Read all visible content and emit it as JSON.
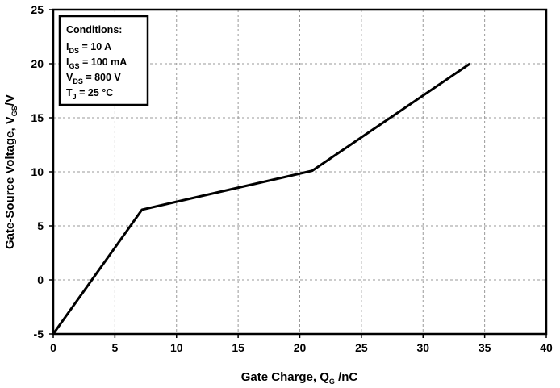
{
  "chart_data": {
    "type": "line",
    "xlabel": {
      "main": "Gate Charge, Q",
      "sub": "G",
      "suffix": " /nC"
    },
    "ylabel": {
      "main": "Gate-Source Voltage, V",
      "sub": "GS",
      "suffix": "/V"
    },
    "xlim": [
      0,
      40
    ],
    "ylim": [
      -5,
      25
    ],
    "x_ticks": [
      "0",
      "5",
      "10",
      "15",
      "20",
      "25",
      "30",
      "35",
      "40"
    ],
    "y_ticks": [
      "-5",
      "0",
      "5",
      "10",
      "15",
      "20",
      "25"
    ],
    "grid": true,
    "series": [
      {
        "color": "#000000",
        "points": [
          [
            0,
            -5
          ],
          [
            7.2,
            6.5
          ],
          [
            21,
            10.1
          ],
          [
            33.8,
            20
          ]
        ]
      }
    ],
    "conditions": {
      "title": "Conditions:",
      "lines": [
        {
          "main": "I",
          "sub": "DS",
          "rest": " = 10 A"
        },
        {
          "main": "I",
          "sub": "GS",
          "rest": " = 100 mA"
        },
        {
          "main": "V",
          "sub": "DS",
          "rest": " = 800 V"
        },
        {
          "main": "T",
          "sub": "J",
          "rest": " = 25 °C"
        }
      ]
    }
  }
}
